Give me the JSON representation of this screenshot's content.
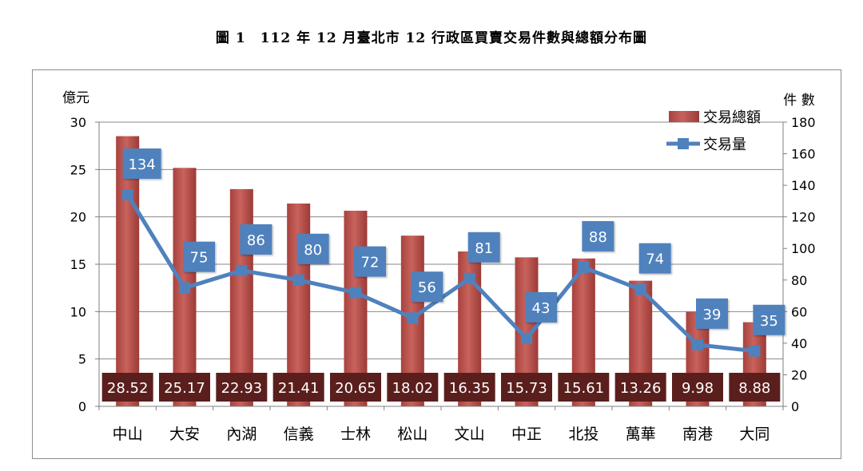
{
  "figure_title": "圖 1　112 年 12 月臺北市 12 行政區買賣交易件數與總額分布圖",
  "chart_data": {
    "type": "bar",
    "categories": [
      "中山",
      "大安",
      "內湖",
      "信義",
      "士林",
      "松山",
      "文山",
      "中正",
      "北投",
      "萬華",
      "南港",
      "大同"
    ],
    "series": [
      {
        "name": "交易總額",
        "type": "bar",
        "axis": "left",
        "values": [
          28.52,
          25.17,
          22.93,
          21.41,
          20.65,
          18.02,
          16.35,
          15.73,
          15.61,
          13.26,
          9.98,
          8.88
        ],
        "labels": [
          "28.52",
          "25.17",
          "22.93",
          "21.41",
          "20.65",
          "18.02",
          "16.35",
          "15.73",
          "15.61",
          "13.26",
          "9.98",
          "8.88"
        ],
        "color": "#b9534e"
      },
      {
        "name": "交易量",
        "type": "line",
        "axis": "right",
        "values": [
          134,
          75,
          86,
          80,
          72,
          56,
          81,
          43,
          88,
          74,
          39,
          35
        ],
        "labels": [
          "134",
          "75",
          "86",
          "80",
          "72",
          "56",
          "81",
          "43",
          "88",
          "74",
          "39",
          "35"
        ],
        "color": "#4f81bd"
      }
    ],
    "ylabel": "億元",
    "y2label": "件 數",
    "ylim": [
      0,
      30
    ],
    "y2lim": [
      0,
      180
    ],
    "yticks": [
      "0",
      "5",
      "10",
      "15",
      "20",
      "25",
      "30"
    ],
    "y2ticks": [
      "0",
      "20",
      "40",
      "60",
      "80",
      "100",
      "120",
      "140",
      "160",
      "180"
    ],
    "grid": true,
    "legend_position": "top-right"
  }
}
